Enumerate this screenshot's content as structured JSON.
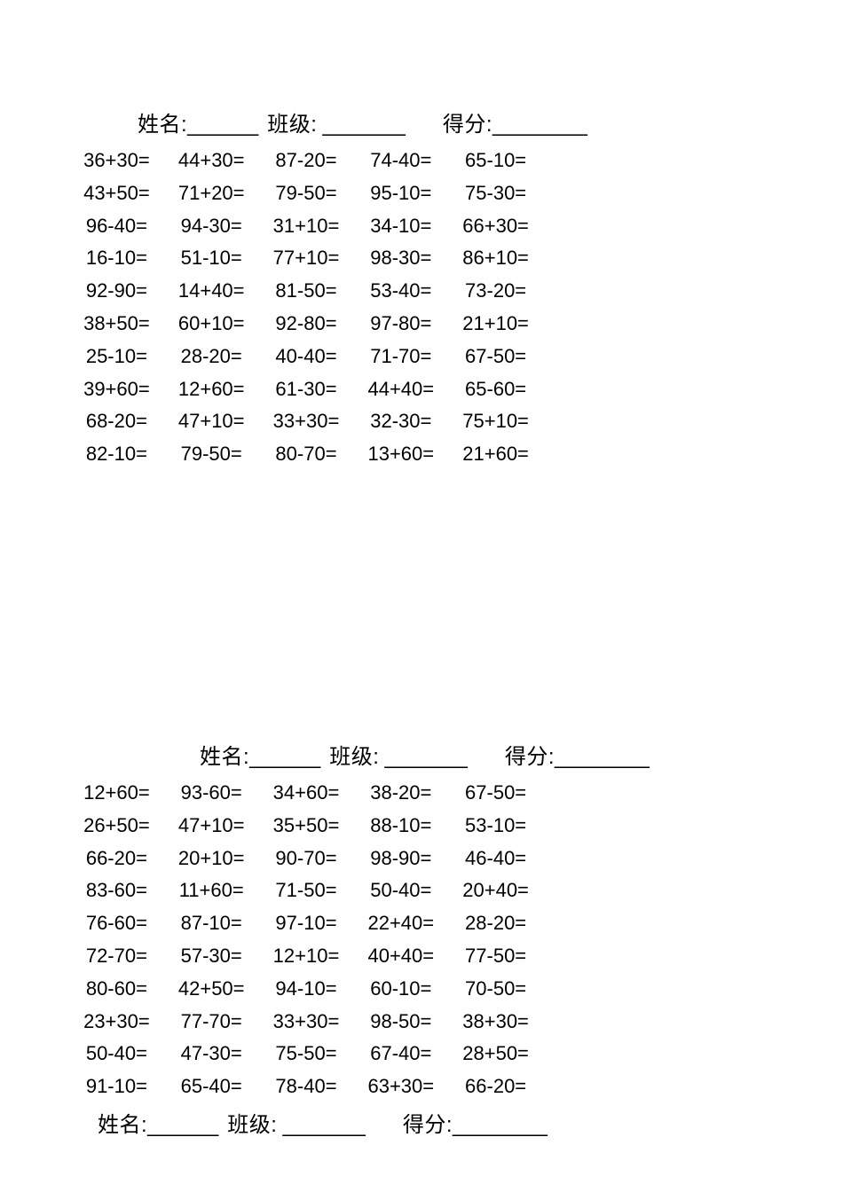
{
  "page": {
    "background": "#ffffff",
    "text_color": "#000000"
  },
  "header_labels": {
    "name": "姓名:",
    "name_blank": "______",
    "class": "班级:",
    "class_blank": "_______",
    "score": "得分:",
    "score_blank": "________"
  },
  "sections": [
    {
      "rows": [
        [
          "36+30=",
          "44+30=",
          "87-20=",
          "74-40=",
          "65-10="
        ],
        [
          "43+50=",
          "71+20=",
          "79-50=",
          "95-10=",
          "75-30="
        ],
        [
          "96-40=",
          "94-30=",
          "31+10=",
          "34-10=",
          "66+30="
        ],
        [
          "16-10=",
          "51-10=",
          "77+10=",
          "98-30=",
          "86+10="
        ],
        [
          "92-90=",
          "14+40=",
          "81-50=",
          "53-40=",
          "73-20="
        ],
        [
          "38+50=",
          "60+10=",
          "92-80=",
          "97-80=",
          "21+10="
        ],
        [
          "25-10=",
          "28-20=",
          "40-40=",
          "71-70=",
          "67-50="
        ],
        [
          "39+60=",
          "12+60=",
          "61-30=",
          "44+40=",
          "65-60="
        ],
        [
          "68-20=",
          "47+10=",
          "33+30=",
          "32-30=",
          "75+10="
        ],
        [
          "82-10=",
          "79-50=",
          "80-70=",
          "13+60=",
          "21+60="
        ]
      ]
    },
    {
      "rows": [
        [
          "12+60=",
          "93-60=",
          "34+60=",
          "38-20=",
          "67-50="
        ],
        [
          "26+50=",
          "47+10=",
          "35+50=",
          "88-10=",
          "53-10="
        ],
        [
          "66-20=",
          "20+10=",
          "90-70=",
          "98-90=",
          "46-40="
        ],
        [
          "83-60=",
          "11+60=",
          "71-50=",
          "50-40=",
          "20+40="
        ],
        [
          "76-60=",
          "87-10=",
          "97-10=",
          "22+40=",
          "28-20="
        ],
        [
          "72-70=",
          "57-30=",
          "12+10=",
          "40+40=",
          "77-50="
        ],
        [
          "80-60=",
          "42+50=",
          "94-10=",
          "60-10=",
          "70-50="
        ],
        [
          "23+30=",
          "77-70=",
          "33+30=",
          "98-50=",
          "38+30="
        ],
        [
          "50-40=",
          "47-30=",
          "75-50=",
          "67-40=",
          "28+50="
        ],
        [
          "91-10=",
          "65-40=",
          "78-40=",
          "63+30=",
          "66-20="
        ]
      ]
    }
  ]
}
